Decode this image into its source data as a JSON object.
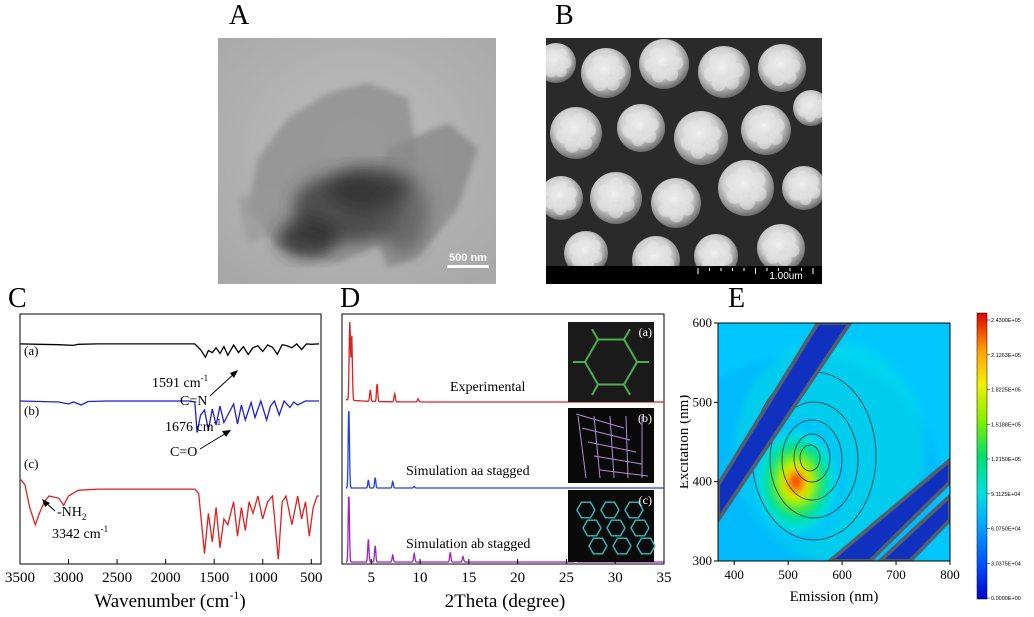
{
  "panels": {
    "A": {
      "letter": "A",
      "scale_bar": "500 nm"
    },
    "B": {
      "letter": "B",
      "scale_bar": "1.00um"
    },
    "C": {
      "letter": "C",
      "curve_labels": [
        "(a)",
        "(b)",
        "(c)"
      ],
      "annotations": {
        "cn_value": "1591 cm",
        "cn_sup": "-1",
        "cn_bond": "C=N",
        "co_value": "1676 cm",
        "co_sup": "-1",
        "co_bond": "C=O",
        "nh2": "-NH",
        "nh2_sub": "2",
        "nh_value": "3342 cm",
        "nh_sup": "-1"
      }
    },
    "D": {
      "letter": "D",
      "inset_labels": [
        "(a)",
        "(b)",
        "(c)"
      ],
      "trace_labels": [
        "Experimental",
        "Simulation aa stagged",
        "Simulation ab stagged"
      ]
    },
    "E": {
      "letter": "E"
    }
  },
  "chart_data": [
    {
      "type": "line",
      "panel": "C",
      "xlabel": "Wavenumber (cm-1)",
      "xlabel_main": "Wavenumber (cm",
      "xlabel_sup": "-1",
      "xlabel_tail": ")",
      "xlim": [
        3500,
        400
      ],
      "xticks": [
        3500,
        3000,
        2500,
        2000,
        1500,
        1000,
        500
      ],
      "series": [
        {
          "name": "(a)",
          "color": "#000000",
          "x": [
            3500,
            3300,
            3100,
            2950,
            2900,
            2700,
            2400,
            2100,
            1800,
            1700,
            1640,
            1591,
            1560,
            1520,
            1480,
            1440,
            1400,
            1360,
            1300,
            1250,
            1200,
            1150,
            1100,
            1050,
            1000,
            950,
            900,
            850,
            800,
            750,
            700,
            650,
            600,
            550,
            500,
            420
          ],
          "y": [
            95,
            94,
            93,
            91,
            94,
            95,
            95,
            95,
            95,
            95,
            80,
            60,
            78,
            72,
            85,
            70,
            88,
            65,
            92,
            72,
            88,
            67,
            85,
            90,
            75,
            92,
            86,
            68,
            93,
            90,
            85,
            95,
            80,
            95,
            94,
            95
          ]
        },
        {
          "name": "(b)",
          "color": "#1f1fd0",
          "x": [
            3500,
            3300,
            3100,
            3000,
            2950,
            2870,
            2800,
            2600,
            2400,
            2100,
            1900,
            1750,
            1700,
            1676,
            1640,
            1600,
            1560,
            1520,
            1480,
            1440,
            1400,
            1360,
            1300,
            1260,
            1220,
            1180,
            1120,
            1080,
            1020,
            960,
            920,
            880,
            830,
            780,
            720,
            680,
            640,
            560,
            480,
            420
          ],
          "y": [
            88,
            87,
            86,
            82,
            86,
            80,
            87,
            88,
            88,
            88,
            88,
            88,
            86,
            25,
            60,
            70,
            30,
            72,
            40,
            78,
            45,
            60,
            82,
            42,
            80,
            50,
            85,
            55,
            88,
            50,
            78,
            88,
            60,
            88,
            75,
            86,
            80,
            88,
            88,
            88
          ]
        },
        {
          "name": "(c)",
          "color": "#e02020",
          "x": [
            3500,
            3450,
            3400,
            3342,
            3300,
            3250,
            3200,
            3100,
            3050,
            3000,
            2900,
            2700,
            2500,
            2300,
            2100,
            1900,
            1750,
            1700,
            1660,
            1600,
            1560,
            1520,
            1480,
            1440,
            1400,
            1360,
            1300,
            1260,
            1220,
            1180,
            1140,
            1100,
            1050,
            1000,
            950,
            900,
            840,
            800,
            760,
            700,
            640,
            600,
            560,
            520,
            480,
            440,
            420
          ],
          "y": [
            75,
            70,
            50,
            35,
            45,
            55,
            60,
            58,
            52,
            60,
            65,
            66,
            66,
            66,
            66,
            66,
            66,
            66,
            62,
            10,
            45,
            20,
            50,
            15,
            40,
            35,
            55,
            25,
            50,
            30,
            55,
            45,
            60,
            40,
            55,
            60,
            5,
            55,
            60,
            35,
            60,
            40,
            55,
            25,
            50,
            60,
            60
          ]
        }
      ]
    },
    {
      "type": "line",
      "panel": "D",
      "xlabel": "2Theta (degree)",
      "xlim": [
        2,
        35
      ],
      "xticks": [
        5,
        10,
        15,
        20,
        25,
        30,
        35
      ],
      "series": [
        {
          "name": "Experimental",
          "color": "#e02020",
          "peaks": [
            [
              2.8,
              100
            ],
            [
              3.0,
              80
            ],
            [
              4.9,
              14
            ],
            [
              5.6,
              22
            ],
            [
              7.4,
              10
            ],
            [
              9.8,
              4
            ]
          ]
        },
        {
          "name": "Simulation aa stagged",
          "color": "#2040e0",
          "peaks": [
            [
              2.7,
              100
            ],
            [
              4.7,
              10
            ],
            [
              5.4,
              13
            ],
            [
              7.2,
              8
            ],
            [
              9.4,
              2
            ]
          ]
        },
        {
          "name": "Simulation ab stagged",
          "color": "#a020c0",
          "peaks": [
            [
              2.7,
              100
            ],
            [
              4.7,
              34
            ],
            [
              5.4,
              24
            ],
            [
              7.2,
              10
            ],
            [
              9.4,
              12
            ],
            [
              13.1,
              14
            ],
            [
              14.4,
              8
            ],
            [
              26.0,
              4
            ]
          ]
        }
      ]
    },
    {
      "type": "heatmap",
      "panel": "E",
      "xlabel": "Emission (nm)",
      "ylabel": "Excitation (nm)",
      "xlim": [
        370,
        800
      ],
      "ylim": [
        300,
        600
      ],
      "xticks": [
        400,
        500,
        600,
        700,
        800
      ],
      "yticks": [
        300,
        400,
        500,
        600
      ],
      "peak": {
        "emission": 515,
        "excitation": 400
      },
      "colorbar": {
        "colors": [
          "#0000cc",
          "#0050ff",
          "#00a0ff",
          "#00e0e0",
          "#00e070",
          "#80f000",
          "#f0f000",
          "#ffa000",
          "#ff4000",
          "#e00000"
        ],
        "labels": [
          "2.4300E+05",
          "2.1263E+05",
          "1.8225E+05",
          "1.5188E+05",
          "1.2150E+05",
          "9.1125E+04",
          "6.0750E+04",
          "3.0375E+04",
          "0.0000E+00"
        ]
      }
    }
  ]
}
